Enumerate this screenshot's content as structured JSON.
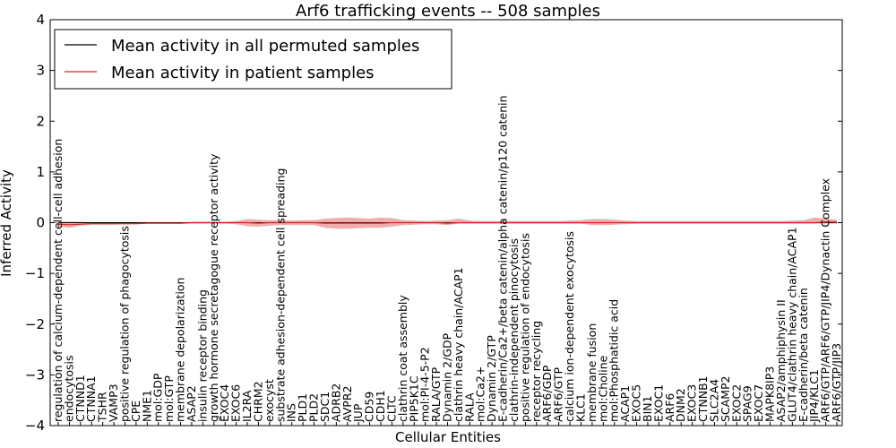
{
  "chart_data": {
    "type": "line",
    "title": "Arf6 trafficking events -- 508 samples",
    "xlabel": "Cellular Entities",
    "ylabel": "Inferred Activity",
    "ylim": [
      -4,
      4
    ],
    "yticks": [
      -4,
      -3,
      -2,
      -1,
      0,
      1,
      2,
      3,
      4
    ],
    "ytick_labels": [
      "−4",
      "−3",
      "−2",
      "−1",
      "0",
      "1",
      "2",
      "3",
      "4"
    ],
    "legend": {
      "placement": "top-left",
      "entries": [
        {
          "label": "Mean activity in all permuted samples",
          "color": "#000000"
        },
        {
          "label": "Mean activity in patient samples",
          "color": "#d62728"
        }
      ]
    },
    "categories": [
      "regulation of calcium-dependent cell-cell adhesion",
      "endocytosis",
      "CTNND1",
      "CTNNA1",
      "TSHR",
      "VAMP3",
      "positive regulation of phagocytosis",
      "CPE",
      "NME1",
      "mol:GDP",
      "mol:GTP",
      "membrane depolarization",
      "ASAP2",
      "insulin receptor binding",
      "growth hormone secretagogue receptor activity",
      "EXOC4",
      "EXOC6",
      "IL2RA",
      "CHRM2",
      "exocyst",
      "substrate adhesion-dependent cell spreading",
      "INS",
      "PLD1",
      "PLD2",
      "SDC1",
      "ADRB2",
      "AVPR2",
      "JUP",
      "CD59",
      "CDH1",
      "CLTC",
      "clathrin coat assembly",
      "PIP5K1C",
      "mol:PI-4-5-P2",
      "RALA/GTP",
      "Dynamin 2/GDP",
      "clathrin heavy chain/ACAP1",
      "RALA",
      "mol:Ca2+",
      "Dynamin 2/GTP",
      "E-cadherin/Ca2+/beta catenin/alpha catenin/p120 catenin",
      "clathrin-independent pinocytosis",
      "positive regulation of endocytosis",
      "receptor recycling",
      "ARF6/GDP",
      "ARF6/GTP",
      "calcium ion-dependent exocytosis",
      "KLC1",
      "membrane fusion",
      "mol:Choline",
      "mol:Phosphatidic acid",
      "ACAP1",
      "EXOC5",
      "BIN1",
      "EXOC1",
      "ARF6",
      "DNM2",
      "EXOC3",
      "CTNNB1",
      "SLC2A4",
      "SCAMP2",
      "EXOC2",
      "SPAG9",
      "EXOC7",
      "MAPK8IP3",
      "ASAP2/amphiphysin II",
      "GLUT4/clathrin heavy chain/ACAP1",
      "E-cadherin/beta catenin",
      "JIP4/KLC1",
      "ARF6/GTP/ARF6/GTP/JIP4/Dynactin Complex",
      "ARF6/GTP/JIP3"
    ],
    "series": [
      {
        "name": "Mean activity in all permuted samples",
        "color": "#000000",
        "values": [
          0,
          0,
          0,
          0,
          0,
          0,
          0,
          0,
          0,
          0,
          0,
          0,
          0,
          0,
          0,
          0,
          0,
          0,
          0,
          0,
          0,
          0,
          0,
          0,
          0,
          0,
          0,
          0,
          0,
          0,
          0,
          0,
          0,
          0,
          0,
          0,
          0,
          0,
          0,
          0,
          0,
          0,
          0,
          0,
          0,
          0,
          0,
          0,
          0,
          0,
          0,
          0,
          0,
          0,
          0,
          0,
          0,
          0,
          0,
          0,
          0,
          0,
          0,
          0,
          0,
          0,
          0,
          0,
          0,
          0,
          0
        ]
      },
      {
        "name": "Mean activity in patient samples",
        "color": "#d62728",
        "values": [
          -0.03,
          -0.04,
          -0.03,
          -0.02,
          -0.02,
          -0.02,
          -0.02,
          -0.02,
          -0.01,
          -0.01,
          -0.01,
          -0.01,
          0,
          0,
          0,
          0,
          0,
          0,
          -0.01,
          0,
          0,
          0,
          0,
          0,
          -0.01,
          -0.01,
          -0.01,
          -0.01,
          -0.01,
          -0.01,
          0,
          0,
          0,
          0,
          0,
          -0.01,
          0,
          0,
          0,
          0,
          0,
          0,
          0,
          0,
          0,
          0,
          0,
          0,
          0,
          0,
          0,
          0,
          0,
          0,
          0,
          0,
          0,
          0,
          0,
          0,
          0,
          0,
          0,
          0,
          0,
          0,
          0,
          0,
          0,
          0.01,
          0.01
        ],
        "band_lower": [
          -0.08,
          -0.1,
          -0.06,
          -0.04,
          -0.04,
          -0.04,
          -0.03,
          -0.03,
          -0.02,
          -0.02,
          -0.02,
          -0.02,
          -0.02,
          -0.02,
          -0.02,
          -0.02,
          -0.03,
          -0.07,
          -0.08,
          -0.06,
          -0.05,
          -0.05,
          -0.05,
          -0.05,
          -0.1,
          -0.12,
          -0.12,
          -0.11,
          -0.1,
          -0.1,
          -0.08,
          -0.05,
          -0.04,
          -0.03,
          -0.03,
          -0.05,
          -0.02,
          -0.02,
          -0.02,
          -0.02,
          -0.02,
          -0.02,
          -0.02,
          -0.02,
          -0.02,
          -0.02,
          -0.02,
          -0.02,
          -0.05,
          -0.05,
          -0.04,
          -0.03,
          -0.02,
          -0.02,
          -0.02,
          -0.02,
          -0.02,
          -0.02,
          -0.02,
          -0.02,
          -0.02,
          -0.02,
          -0.02,
          -0.02,
          -0.02,
          -0.02,
          -0.02,
          -0.02,
          -0.02,
          -0.02,
          -0.02
        ],
        "band_upper": [
          0.02,
          0.02,
          0.02,
          0.01,
          0.01,
          0.01,
          0.01,
          0.01,
          0.01,
          0.01,
          0.01,
          0.01,
          0.02,
          0.02,
          0.02,
          0.02,
          0.03,
          0.07,
          0.06,
          0.05,
          0.05,
          0.04,
          0.05,
          0.05,
          0.08,
          0.09,
          0.1,
          0.09,
          0.08,
          0.1,
          0.09,
          0.05,
          0.04,
          0.03,
          0.04,
          0.05,
          0.08,
          0.04,
          0.03,
          0.03,
          0.03,
          0.03,
          0.03,
          0.03,
          0.03,
          0.03,
          0.04,
          0.05,
          0.07,
          0.07,
          0.06,
          0.04,
          0.03,
          0.03,
          0.03,
          0.03,
          0.03,
          0.03,
          0.03,
          0.03,
          0.03,
          0.03,
          0.03,
          0.03,
          0.03,
          0.03,
          0.04,
          0.05,
          0.1,
          0.08,
          0.06
        ]
      }
    ]
  }
}
